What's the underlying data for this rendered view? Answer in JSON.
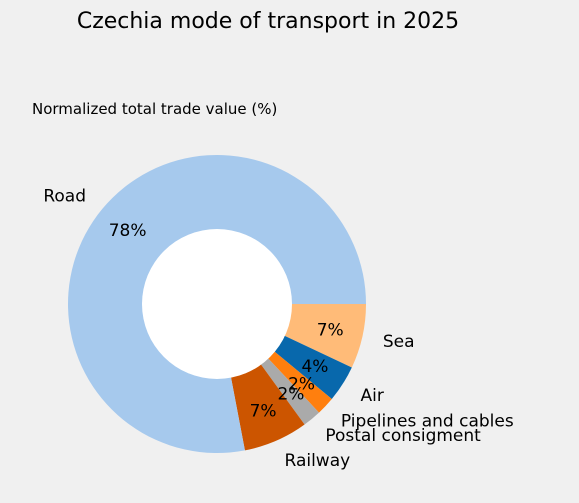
{
  "chart_data": {
    "type": "pie",
    "title": "Czechia mode of transport in 2025",
    "subtitle": "Normalized total trade value (%)",
    "donut": true,
    "slices": [
      {
        "label": "Sea",
        "value": 7,
        "pct_label": "7%",
        "color": "#ffbb78"
      },
      {
        "label": "Air",
        "value": 4,
        "pct_label": "4%",
        "color": "#0868ac"
      },
      {
        "label": "Pipelines and cables",
        "value": 2,
        "pct_label": "2%",
        "color": "#ff7f0e"
      },
      {
        "label": "Postal consigment",
        "value": 2,
        "pct_label": "2%",
        "color": "#aaaaaa"
      },
      {
        "label": "Railway",
        "value": 7,
        "pct_label": "7%",
        "color": "#cc5500"
      },
      {
        "label": "Road",
        "value": 78,
        "pct_label": "78%",
        "color": "#a6c9ed"
      }
    ]
  }
}
